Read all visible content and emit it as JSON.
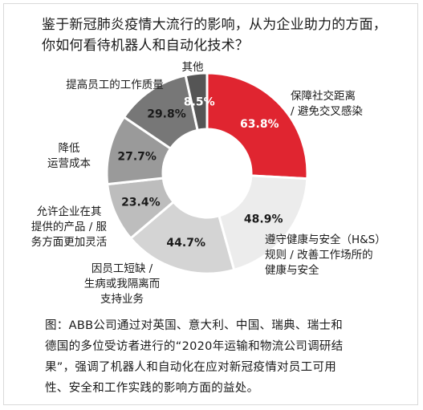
{
  "question": {
    "line1": "鉴于新冠肺炎疫情大流行的影响，从为企业助力的方面，",
    "line2": "你如何看待机器人和自动化技术？"
  },
  "chart_data": {
    "type": "pie",
    "style": "donut",
    "legend": "none",
    "slices": [
      {
        "value": 63.8,
        "label": "63.8%",
        "category": [
          "保障社交距离",
          "/ 避免交叉感染"
        ],
        "color": "#e02530",
        "text_color": "#ffffff"
      },
      {
        "value": 48.9,
        "label": "48.9%",
        "category": [
          "遵守健康与安全（H&S）",
          "规则 / 改善工作场所的",
          "健康与安全"
        ],
        "color": "#ececec",
        "text_color": "#1a1a1a"
      },
      {
        "value": 44.7,
        "label": "44.7%",
        "category": [
          "因员工短缺 /",
          "生病或我隔离而",
          "支持业务"
        ],
        "color": "#d4d4d4",
        "text_color": "#1a1a1a"
      },
      {
        "value": 23.4,
        "label": "23.4%",
        "category": [
          "允许企业在其",
          "提供的产品 / 服",
          "务方面更加灵活"
        ],
        "color": "#bdbdbd",
        "text_color": "#1a1a1a"
      },
      {
        "value": 27.7,
        "label": "27.7%",
        "category": [
          "降低",
          "运营成本"
        ],
        "color": "#9a9a9a",
        "text_color": "#1a1a1a"
      },
      {
        "value": 29.8,
        "label": "29.8%",
        "category": [
          "提高员工的工作质量"
        ],
        "color": "#777777",
        "text_color": "#1a1a1a"
      },
      {
        "value": 8.5,
        "label": "8.5%",
        "category": [
          "其他"
        ],
        "color": "#555555",
        "text_color": "#ffffff"
      }
    ]
  },
  "caption": {
    "line1": "图：ABB公司通过对英国、意大利、中国、瑞典、瑞士和",
    "line2": "德国的多位受访者进行的“2020年运输和物流公司调研结",
    "line3": "果”，强调了机器人和自动化在应对新冠疫情对员工可用",
    "line4": "性、安全和工作实践的影响方面的益处。"
  }
}
